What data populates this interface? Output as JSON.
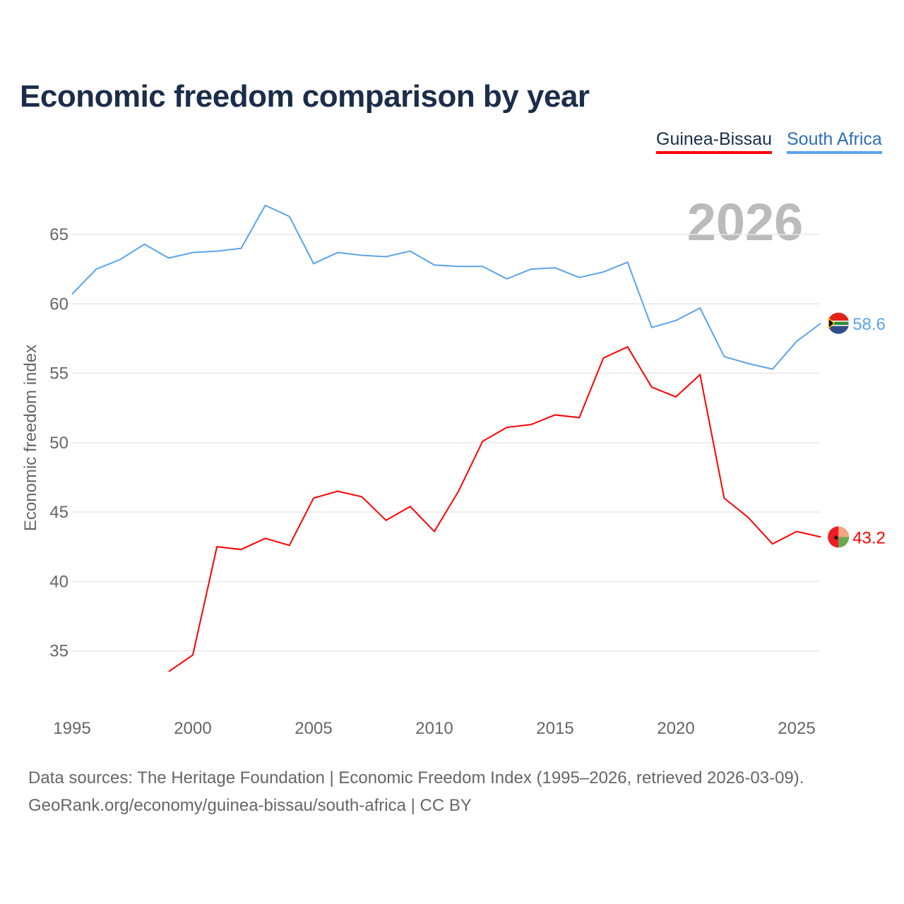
{
  "title": "Economic freedom comparison by year",
  "year_watermark": "2026",
  "footer": {
    "line1": "Data sources: The Heritage Foundation | Economic Freedom Index (1995–2026, retrieved 2026-03-09).",
    "line2": "GeoRank.org/economy/guinea-bissau/south-africa | CC BY"
  },
  "chart_data": {
    "type": "line",
    "title": "Economic freedom comparison by year",
    "xlabel": "",
    "ylabel": "Economic freedom index",
    "xlim": [
      1995,
      2026
    ],
    "ylim": [
      31,
      69
    ],
    "xticks": [
      1995,
      2000,
      2005,
      2010,
      2015,
      2020,
      2025
    ],
    "yticks": [
      35,
      40,
      45,
      50,
      55,
      60,
      65
    ],
    "grid": true,
    "legend_position": "top-right",
    "series": [
      {
        "name": "Guinea-Bissau",
        "color": "#ff0000",
        "end_label": "43.2",
        "flag": "guinea-bissau-flag",
        "x": [
          1999,
          2000,
          2001,
          2002,
          2003,
          2004,
          2005,
          2006,
          2007,
          2008,
          2009,
          2010,
          2011,
          2012,
          2013,
          2014,
          2015,
          2016,
          2017,
          2018,
          2019,
          2020,
          2021,
          2022,
          2023,
          2024,
          2025,
          2026
        ],
        "values": [
          33.5,
          34.7,
          42.5,
          42.3,
          43.1,
          42.6,
          46.0,
          46.5,
          46.1,
          44.4,
          45.4,
          43.6,
          46.5,
          50.1,
          51.1,
          51.3,
          52.0,
          51.8,
          56.1,
          56.9,
          54.0,
          53.3,
          54.9,
          46.0,
          44.6,
          42.7,
          43.6,
          43.2
        ]
      },
      {
        "name": "South Africa",
        "color": "#5ba4ea",
        "end_label": "58.6",
        "flag": "south-africa-flag",
        "x": [
          1995,
          1996,
          1997,
          1998,
          1999,
          2000,
          2001,
          2002,
          2003,
          2004,
          2005,
          2006,
          2007,
          2008,
          2009,
          2010,
          2011,
          2012,
          2013,
          2014,
          2015,
          2016,
          2017,
          2018,
          2019,
          2020,
          2021,
          2022,
          2023,
          2024,
          2025,
          2026
        ],
        "values": [
          60.7,
          62.5,
          63.2,
          64.3,
          63.3,
          63.7,
          63.8,
          64.0,
          67.1,
          66.3,
          62.9,
          63.7,
          63.5,
          63.4,
          63.8,
          62.8,
          62.7,
          62.7,
          61.8,
          62.5,
          62.6,
          61.9,
          62.3,
          63.0,
          58.3,
          58.8,
          59.7,
          56.2,
          55.7,
          55.3,
          57.3,
          58.6
        ]
      }
    ]
  }
}
